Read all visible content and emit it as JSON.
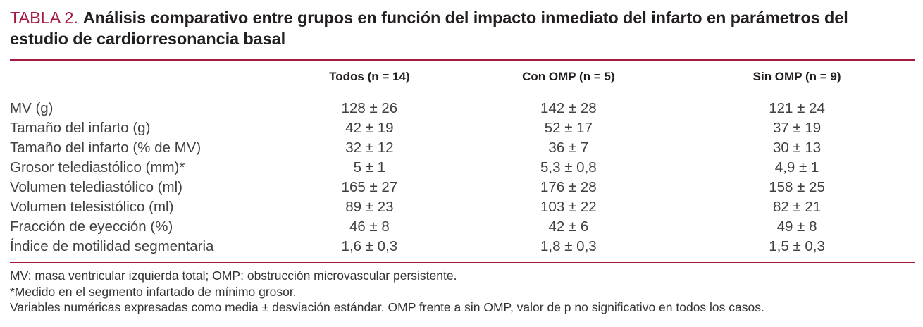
{
  "table": {
    "label": "TABLA 2.",
    "title": "Análisis comparativo entre grupos en función del impacto inmediato del infarto en parámetros del estudio de cardiorresonancia basal",
    "accent_color": "#A5193D",
    "columns": [
      "Todos (n = 14)",
      "Con OMP (n = 5)",
      "Sin OMP (n = 9)"
    ],
    "rows": [
      {
        "label": "MV (g)",
        "values": [
          "128 ± 26",
          "142 ± 28",
          "121 ± 24"
        ]
      },
      {
        "label": "Tamaño del infarto (g)",
        "values": [
          "42 ± 19",
          "52 ± 17",
          "37 ± 19"
        ]
      },
      {
        "label": "Tamaño del infarto (% de MV)",
        "values": [
          "32 ± 12",
          "36 ± 7",
          "30 ± 13"
        ]
      },
      {
        "label": "Grosor telediastólico (mm)*",
        "values": [
          "5 ± 1",
          "5,3 ± 0,8",
          "4,9 ± 1"
        ]
      },
      {
        "label": "Volumen telediastólico (ml)",
        "values": [
          "165 ± 27",
          "176 ± 28",
          "158 ± 25"
        ]
      },
      {
        "label": "Volumen telesistólico (ml)",
        "values": [
          "89 ± 23",
          "103 ± 22",
          "82 ± 21"
        ]
      },
      {
        "label": "Fracción de eyección (%)",
        "values": [
          "46 ± 8",
          "42 ± 6",
          "49 ± 8"
        ]
      },
      {
        "label": "Índice de motilidad segmentaria",
        "values": [
          "1,6 ± 0,3",
          "1,8 ± 0,3",
          "1,5 ± 0,3"
        ]
      }
    ],
    "footnotes": [
      "MV: masa ventricular izquierda total; OMP: obstrucción microvascular persistente.",
      "*Medido en el segmento infartado de mínimo grosor.",
      "Variables numéricas expresadas como media ± desviación estándar. OMP frente a sin OMP, valor de p no significativo en todos los casos."
    ]
  },
  "chart_data": {
    "type": "table",
    "title": "TABLA 2. Análisis comparativo entre grupos en función del impacto inmediato del infarto en parámetros del estudio de cardiorresonancia basal",
    "categories": [
      "MV (g)",
      "Tamaño del infarto (g)",
      "Tamaño del infarto (% de MV)",
      "Grosor telediastólico (mm)*",
      "Volumen telediastólico (ml)",
      "Volumen telesistólico (ml)",
      "Fracción de eyección (%)",
      "Índice de motilidad segmentaria"
    ],
    "series": [
      {
        "name": "Todos (n = 14)",
        "values": [
          "128 ± 26",
          "42 ± 19",
          "32 ± 12",
          "5 ± 1",
          "165 ± 27",
          "89 ± 23",
          "46 ± 8",
          "1,6 ± 0,3"
        ]
      },
      {
        "name": "Con OMP (n = 5)",
        "values": [
          "142 ± 28",
          "52 ± 17",
          "36 ± 7",
          "5,3 ± 0,8",
          "176 ± 28",
          "103 ± 22",
          "42 ± 6",
          "1,8 ± 0,3"
        ]
      },
      {
        "name": "Sin OMP (n = 9)",
        "values": [
          "121 ± 24",
          "37 ± 19",
          "30 ± 13",
          "4,9 ± 1",
          "158 ± 25",
          "82 ± 21",
          "49 ± 8",
          "1,5 ± 0,3"
        ]
      }
    ]
  }
}
